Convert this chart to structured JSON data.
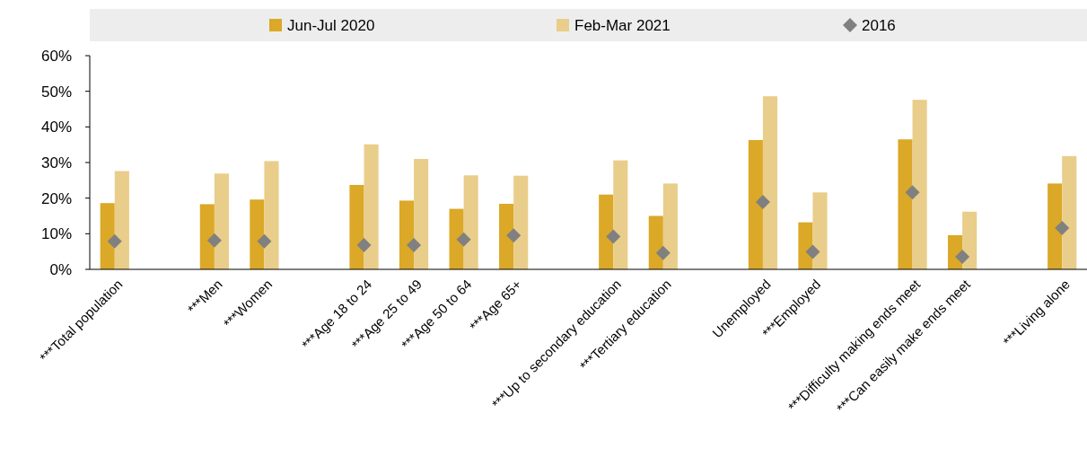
{
  "chart_data": {
    "type": "bar",
    "categories": [
      "***Total population",
      null,
      "***Men",
      "***Women",
      null,
      "***Age 18 to 24",
      "***Age 25 to 49",
      "***Age 50 to 64",
      "***Age 65+",
      null,
      "***Up to secondary education",
      "***Tertiary education",
      null,
      "Unemployed",
      "***Employed",
      null,
      "***Difficulty making ends meet",
      "***Can easily make ends meet",
      null,
      "***Living alone"
    ],
    "series": [
      {
        "name": "Jun-Jul 2020",
        "color": "#dba827",
        "values": [
          18.6,
          null,
          18.3,
          19.6,
          null,
          23.7,
          19.3,
          17.0,
          18.4,
          null,
          21.0,
          15.0,
          null,
          36.3,
          13.2,
          null,
          36.5,
          9.6,
          null,
          24.1
        ]
      },
      {
        "name": "Feb-Mar 2021",
        "color": "#e9cd8a",
        "values": [
          27.6,
          null,
          26.9,
          30.4,
          null,
          35.1,
          31.0,
          26.4,
          26.3,
          null,
          30.6,
          24.1,
          null,
          48.6,
          21.6,
          null,
          47.6,
          16.2,
          null,
          31.8
        ]
      },
      {
        "name": "2016",
        "type": "scatter",
        "marker": "diamond",
        "color": "#808080",
        "values": [
          7.9,
          null,
          8.1,
          7.9,
          null,
          6.8,
          6.8,
          8.4,
          9.5,
          null,
          9.2,
          4.6,
          null,
          18.9,
          4.9,
          null,
          21.6,
          3.5,
          null,
          11.6
        ]
      }
    ],
    "ylim": [
      0,
      60
    ],
    "yticks": [
      {
        "value": 0,
        "label": "0%"
      },
      {
        "value": 10,
        "label": "10%"
      },
      {
        "value": 20,
        "label": "20%"
      },
      {
        "value": 30,
        "label": "30%"
      },
      {
        "value": 40,
        "label": "40%"
      },
      {
        "value": 50,
        "label": "50%"
      },
      {
        "value": 60,
        "label": "60%"
      }
    ],
    "grid": false,
    "legend": "top"
  }
}
